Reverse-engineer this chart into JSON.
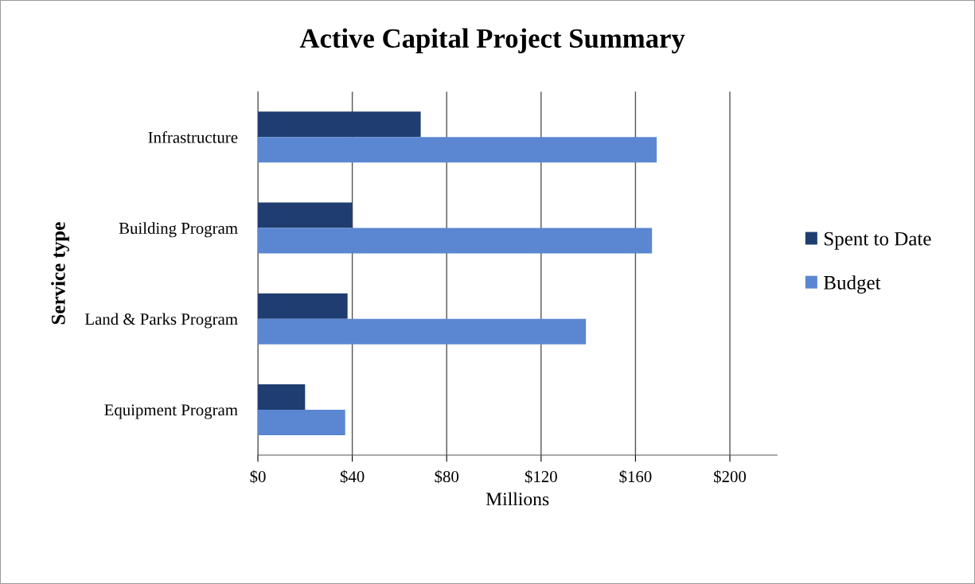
{
  "chart_data": {
    "type": "bar",
    "orientation": "horizontal",
    "title": "Active Capital Project Summary",
    "xlabel": "Millions",
    "ylabel": "Service type",
    "categories": [
      "Infrastructure",
      "Building Program",
      "Land & Parks Program",
      "Equipment Program"
    ],
    "series": [
      {
        "name": "Spent to Date",
        "color": "#1f3d70",
        "values": [
          69,
          40,
          38,
          20
        ]
      },
      {
        "name": "Budget",
        "color": "#5b87d2",
        "values": [
          169,
          167,
          139,
          37
        ]
      }
    ],
    "xlim": [
      0,
      220
    ],
    "xticks": [
      {
        "value": 0,
        "label": "$0"
      },
      {
        "value": 40,
        "label": "$40"
      },
      {
        "value": 80,
        "label": "$80"
      },
      {
        "value": 120,
        "label": "$120"
      },
      {
        "value": 160,
        "label": "$160"
      },
      {
        "value": 200,
        "label": "$200"
      }
    ],
    "grid": "x",
    "legend": "right"
  }
}
